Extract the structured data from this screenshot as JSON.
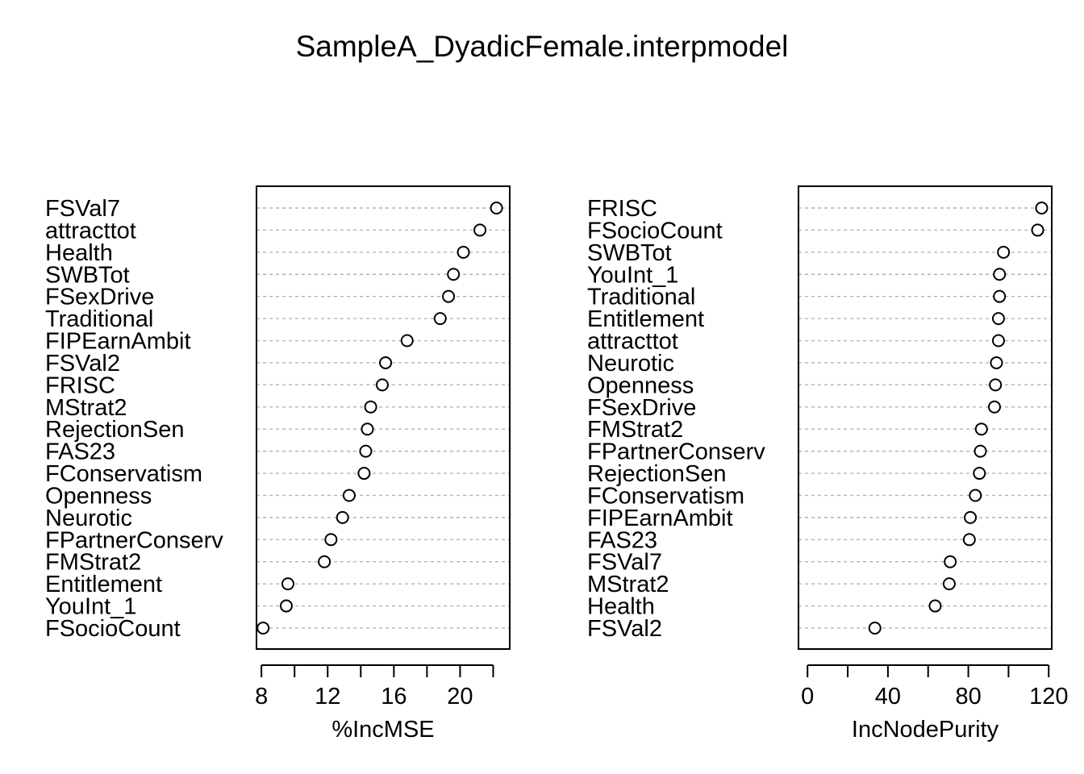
{
  "title": "SampleA_DyadicFemale.interpmodel",
  "chart_data": [
    {
      "type": "scatter",
      "subtype": "dotchart",
      "xlabel": "%IncMSE",
      "ylabel": "",
      "xticks": [
        8,
        12,
        16,
        20
      ],
      "xlim": [
        7.7,
        23.0
      ],
      "grid": true,
      "categories": [
        "FSVal7",
        "attracttot",
        "Health",
        "SWBTot",
        "FSexDrive",
        "Traditional",
        "FIPEarnAmbit",
        "FSVal2",
        "FRISC",
        "MStrat2",
        "RejectionSen",
        "FAS23",
        "FConservatism",
        "Openness",
        "Neurotic",
        "FPartnerConserv",
        "FMStrat2",
        "Entitlement",
        "YouInt_1",
        "FSocioCount"
      ],
      "values": [
        22.2,
        21.2,
        20.2,
        19.6,
        19.3,
        18.8,
        16.8,
        15.5,
        15.3,
        14.6,
        14.4,
        14.3,
        14.2,
        13.3,
        12.9,
        12.2,
        11.8,
        9.6,
        9.5,
        8.1
      ]
    },
    {
      "type": "scatter",
      "subtype": "dotchart",
      "xlabel": "IncNodePurity",
      "ylabel": "",
      "xticks": [
        0,
        20,
        40,
        60,
        80,
        100,
        120
      ],
      "xticklabels": [
        "0",
        "",
        "40",
        "",
        "80",
        "",
        "120"
      ],
      "xlim": [
        -4.5,
        121.5
      ],
      "grid": true,
      "categories": [
        "FRISC",
        "FSocioCount",
        "SWBTot",
        "YouInt_1",
        "Traditional",
        "Entitlement",
        "attracttot",
        "Neurotic",
        "Openness",
        "FSexDrive",
        "FMStrat2",
        "FPartnerConserv",
        "RejectionSen",
        "FConservatism",
        "FIPEarnAmbit",
        "FAS23",
        "FSVal7",
        "MStrat2",
        "Health",
        "FSVal2"
      ],
      "values": [
        116.5,
        114.5,
        97.5,
        95.5,
        95.5,
        95.0,
        95.0,
        94.0,
        93.5,
        93.0,
        86.5,
        86.0,
        85.5,
        83.5,
        81.0,
        80.5,
        71.0,
        70.5,
        63.5,
        33.5
      ]
    }
  ]
}
